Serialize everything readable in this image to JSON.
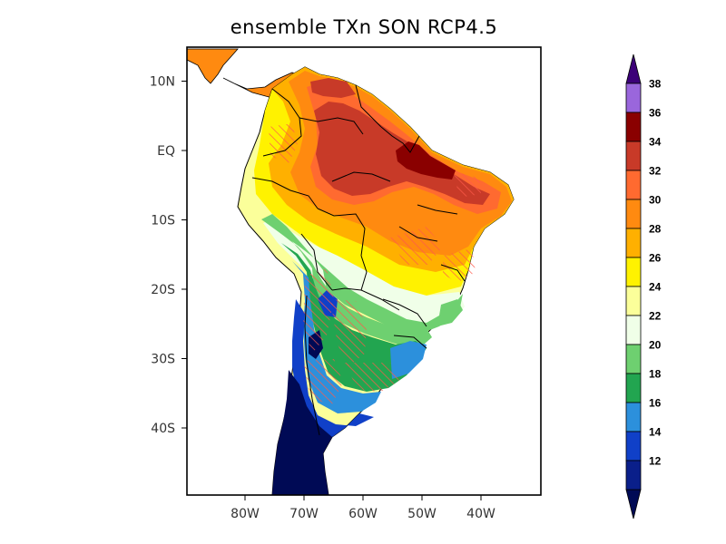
{
  "title": "ensemble TXn SON RCP4.5",
  "map": {
    "y_ticks": [
      {
        "label": "10N",
        "lat": 10
      },
      {
        "label": "EQ",
        "lat": 0
      },
      {
        "label": "10S",
        "lat": -10
      },
      {
        "label": "20S",
        "lat": -20
      },
      {
        "label": "30S",
        "lat": -30
      },
      {
        "label": "40S",
        "lat": -40
      }
    ],
    "x_ticks": [
      {
        "label": "80W",
        "lon": -80
      },
      {
        "label": "70W",
        "lon": -70
      },
      {
        "label": "60W",
        "lon": -60
      },
      {
        "label": "50W",
        "lon": -50
      },
      {
        "label": "40W",
        "lon": -40
      }
    ],
    "lon_range": [
      -90,
      -30
    ],
    "lat_range": [
      -50,
      15
    ],
    "hatch_color": "#ff5a4a"
  },
  "colorbar": {
    "levels": [
      "12",
      "14",
      "16",
      "18",
      "20",
      "22",
      "24",
      "26",
      "28",
      "30",
      "32",
      "34",
      "36",
      "38"
    ],
    "colors": [
      "#0a1f8a",
      "#1040c8",
      "#2c90dc",
      "#22a550",
      "#6ed070",
      "#f0ffe8",
      "#fbff9a",
      "#fff200",
      "#ffb000",
      "#ff8a10",
      "#ff6a30",
      "#c83a28",
      "#8a0000",
      "#9a66dc"
    ],
    "below_color": "#000a55",
    "above_color": "#3c0078"
  }
}
